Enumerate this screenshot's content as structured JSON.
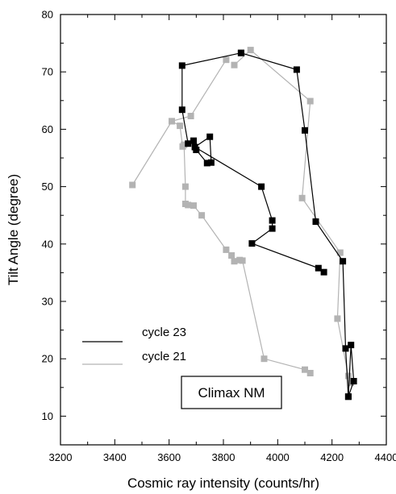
{
  "chart_data": {
    "type": "line",
    "title": "",
    "xlabel": "Cosmic ray intensity (counts/hr)",
    "ylabel": "Tilt Angle (degree)",
    "xlim": [
      3200,
      4400
    ],
    "ylim": [
      5,
      80
    ],
    "xticks": [
      3200,
      3400,
      3600,
      3800,
      4000,
      4200,
      4400
    ],
    "yticks": [
      10,
      20,
      30,
      40,
      50,
      60,
      70,
      80
    ],
    "grid": false,
    "legend": "bottom-left",
    "annotation": "Climax NM",
    "series": [
      {
        "name": "cycle 23",
        "color": "#000000",
        "marker": "square",
        "x": [
          3865,
          3648,
          3648,
          3670,
          3690,
          3700,
          3740,
          3755,
          3750,
          3695,
          3940,
          3980,
          3980,
          3905,
          4150,
          4170
        ],
        "y": [
          73.3,
          71.1,
          63.4,
          57.5,
          58.0,
          56.4,
          54.1,
          54.2,
          58.7,
          56.9,
          50.0,
          44.1,
          42.7,
          40.1,
          35.8,
          35.1
        ]
      },
      {
        "name": "cycle 21",
        "color": "#b3b3b3",
        "marker": "square",
        "x": [
          3610,
          3640,
          3650,
          3655,
          3660,
          3660,
          3670,
          3690,
          3720,
          3810,
          3830,
          3840,
          3860,
          3870,
          3950,
          4100,
          4120
        ],
        "y": [
          61.4,
          60.6,
          57.0,
          57.3,
          50.0,
          47.0,
          46.8,
          46.7,
          45.0,
          39.0,
          38.0,
          37.0,
          37.2,
          37.1,
          20.0,
          18.1,
          17.5
        ]
      },
      {
        "name": "",
        "color": "#000000",
        "marker": "square",
        "x": [
          3865,
          4070,
          4100,
          4140,
          4240,
          4250,
          4260,
          4270,
          4280,
          4260
        ],
        "y": [
          73.3,
          70.4,
          59.8,
          43.9,
          37.0,
          21.8,
          13.4,
          22.4,
          16.1,
          13.4
        ]
      },
      {
        "name": "",
        "color": "#b3b3b3",
        "marker": "square",
        "x": [
          3840,
          3900,
          4120,
          4090,
          4230,
          4220,
          4260,
          4270
        ],
        "y": [
          71.2,
          73.8,
          64.9,
          48.0,
          38.5,
          27.0,
          17.0,
          15.8
        ]
      },
      {
        "name": "",
        "color": "#b3b3b3",
        "marker": "square",
        "x": [
          3465,
          3610,
          3680,
          3810
        ],
        "y": [
          50.3,
          61.4,
          62.3,
          72.1
        ]
      }
    ]
  }
}
